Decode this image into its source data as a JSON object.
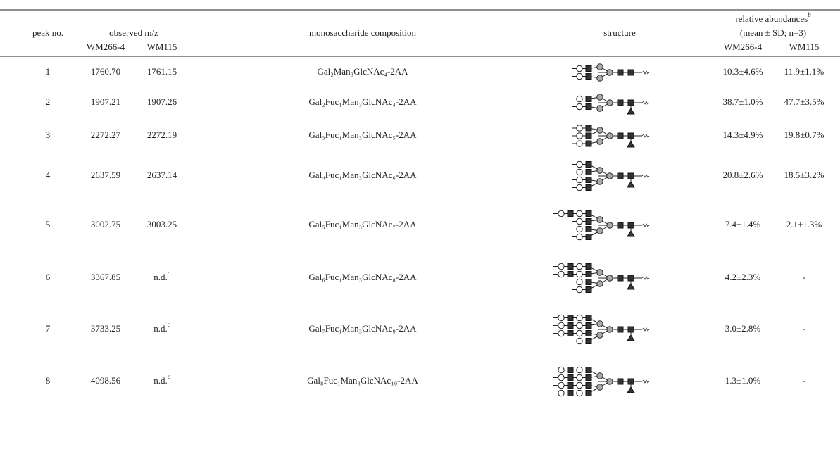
{
  "table": {
    "header": {
      "peak": "peak no.",
      "observed": "observed m/z",
      "composition": "monosaccharide composition",
      "structure": "structure",
      "abundance": "relative abundances",
      "abundance_note": "b",
      "abundance_sub": "(mean ± SD; n=3)",
      "col_a": "WM266-4",
      "col_b": "WM115",
      "col_c": "WM266-4",
      "col_d": "WM115"
    },
    "rows": [
      {
        "peak": "1",
        "mz_a": "1760.70",
        "mz_b": "1761.15",
        "composition": "Gal₂Man₃GlcNAc₄-2AA",
        "ab_a": "10.3±4.6%",
        "ab_b": "11.9±1.1%"
      },
      {
        "peak": "2",
        "mz_a": "1907.21",
        "mz_b": "1907.26",
        "composition": "Gal₂Fuc₁Man₃GlcNAc₄-2AA",
        "ab_a": "38.7±1.0%",
        "ab_b": "47.7±3.5%"
      },
      {
        "peak": "3",
        "mz_a": "2272.27",
        "mz_b": "2272.19",
        "composition": "Gal₃Fuc₁Man₃GlcNAc₅-2AA",
        "ab_a": "14.3±4.9%",
        "ab_b": "19.8±0.7%"
      },
      {
        "peak": "4",
        "mz_a": "2637.59",
        "mz_b": "2637.14",
        "composition": "Gal₄Fuc₁Man₃GlcNAc₆-2AA",
        "ab_a": "20.8±2.6%",
        "ab_b": "18.5±3.2%"
      },
      {
        "peak": "5",
        "mz_a": "3002.75",
        "mz_b": "3003.25",
        "composition": "Gal₅Fuc₁Man₃GlcNAc₇-2AA",
        "ab_a": "7.4±1.4%",
        "ab_b": "2.1±1.3%"
      },
      {
        "peak": "6",
        "mz_a": "3367.85",
        "mz_b": "n.d.",
        "mz_b_note": "c",
        "composition": "Gal₆Fuc₁Man₃GlcNAc₈-2AA",
        "ab_a": "4.2±2.3%",
        "ab_b": "-"
      },
      {
        "peak": "7",
        "mz_a": "3733.25",
        "mz_b": "n.d.",
        "mz_b_note": "c",
        "composition": "Gal₇Fuc₁Man₃GlcNAc₉-2AA",
        "ab_a": "3.0±2.8%",
        "ab_b": "-"
      },
      {
        "peak": "8",
        "mz_a": "4098.56",
        "mz_b": "n.d.",
        "mz_b_note": "c",
        "composition": "Gal₈Fuc₁Man₃GlcNAc₁₀-2AA",
        "ab_a": "1.3±1.0%",
        "ab_b": "-"
      }
    ]
  }
}
